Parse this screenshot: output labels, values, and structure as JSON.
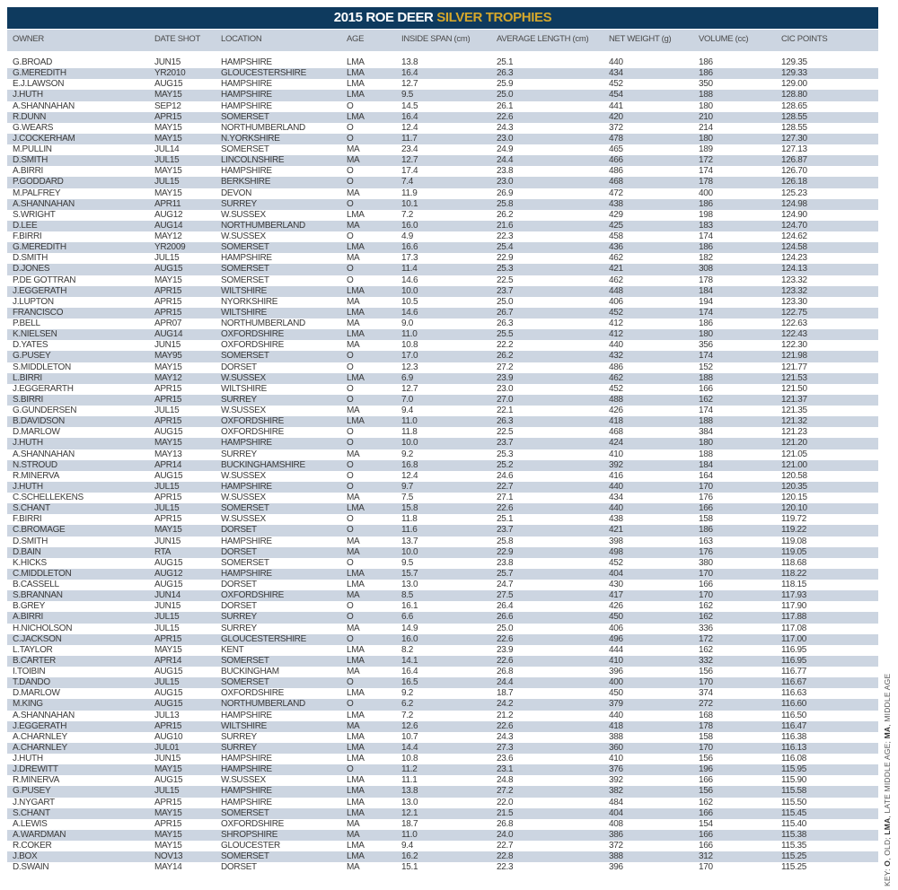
{
  "title": {
    "main": "2015 ROE DEER",
    "accent": "SILVER TROPHIES"
  },
  "colors": {
    "title_bg": "#0e3a5e",
    "accent": "#d4a72c",
    "stripe": "#ccd5e1"
  },
  "columns": [
    "OWNER",
    "DATE SHOT",
    "LOCATION",
    "AGE",
    "INSIDE SPAN (cm)",
    "AVERAGE LENGTH (cm)",
    "NET WEIGHT (g)",
    "VOLUME (cc)",
    "CIC POINTS"
  ],
  "rows": [
    [
      "G.BROAD",
      "JUN15",
      "HAMPSHIRE",
      "LMA",
      "13.8",
      "25.1",
      "440",
      "186",
      "129.35"
    ],
    [
      "G.MEREDITH",
      "YR2010",
      "GLOUCESTERSHIRE",
      "LMA",
      "16.4",
      "26.3",
      "434",
      "186",
      "129.33"
    ],
    [
      "E.J.LAWSON",
      "AUG15",
      "HAMPSHIRE",
      "LMA",
      "12.7",
      "25.9",
      "452",
      "350",
      "129.00"
    ],
    [
      "J.HUTH",
      "MAY15",
      "HAMPSHIRE",
      "LMA",
      "9.5",
      "25.0",
      "454",
      "188",
      "128.80"
    ],
    [
      "A.SHANNAHAN",
      "SEP12",
      "HAMPSHIRE",
      "O",
      "14.5",
      "26.1",
      "441",
      "180",
      "128.65"
    ],
    [
      "R.DUNN",
      "APR15",
      "SOMERSET",
      "LMA",
      "16.4",
      "22.6",
      "420",
      "210",
      "128.55"
    ],
    [
      "G.WEARS",
      "MAY15",
      "NORTHUMBERLAND",
      "O",
      "12.4",
      "24.3",
      "372",
      "214",
      "128.55"
    ],
    [
      "J.COCKERHAM",
      "MAY15",
      "N.YORKSHIRE",
      "O",
      "11.7",
      "23.0",
      "478",
      "180",
      "127.30"
    ],
    [
      "M.PULLIN",
      "JUL14",
      "SOMERSET",
      "MA",
      "23.4",
      "24.9",
      "465",
      "189",
      "127.13"
    ],
    [
      "D.SMITH",
      "JUL15",
      "LINCOLNSHIRE",
      "MA",
      "12.7",
      "24.4",
      "466",
      "172",
      "126.87"
    ],
    [
      "A.BIRRI",
      "MAY15",
      "HAMPSHIRE",
      "O",
      "17.4",
      "23.8",
      "486",
      "174",
      "126.70"
    ],
    [
      "P.GODDARD",
      "JUL15",
      "BERKSHIRE",
      "O",
      "7.4",
      "23.0",
      "468",
      "178",
      "126.18"
    ],
    [
      "M.PALFREY",
      "MAY15",
      "DEVON",
      "MA",
      "11.9",
      "26.9",
      "472",
      "400",
      "125.23"
    ],
    [
      "A.SHANNAHAN",
      "APR11",
      "SURREY",
      "O",
      "10.1",
      "25.8",
      "438",
      "186",
      "124.98"
    ],
    [
      "S.WRIGHT",
      "AUG12",
      "W.SUSSEX",
      "LMA",
      "7.2",
      "26.2",
      "429",
      "198",
      "124.90"
    ],
    [
      "D.LEE",
      "AUG14",
      "NORTHUMBERLAND",
      "MA",
      "16.0",
      "21.6",
      "425",
      "183",
      "124.70"
    ],
    [
      "F.BIRRI",
      "MAY12",
      "W.SUSSEX",
      "O",
      "4.9",
      "22.3",
      "458",
      "174",
      "124.62"
    ],
    [
      "G.MEREDITH",
      "YR2009",
      "SOMERSET",
      "LMA",
      "16.6",
      "25.4",
      "436",
      "186",
      "124.58"
    ],
    [
      "D.SMITH",
      "JUL15",
      "HAMPSHIRE",
      "MA",
      "17.3",
      "22.9",
      "462",
      "182",
      "124.23"
    ],
    [
      "D.JONES",
      "AUG15",
      "SOMERSET",
      "O",
      "11.4",
      "25.3",
      "421",
      "308",
      "124.13"
    ],
    [
      "P.DE GOTTRAN",
      "MAY15",
      "SOMERSET",
      "O",
      "14.6",
      "22.5",
      "462",
      "178",
      "123.32"
    ],
    [
      "J.EGGERATH",
      "APR15",
      "WILTSHIRE",
      "LMA",
      "10.0",
      "23.7",
      "448",
      "184",
      "123.32"
    ],
    [
      "J.LUPTON",
      "APR15",
      "NYORKSHIRE",
      "MA",
      "10.5",
      "25.0",
      "406",
      "194",
      "123.30"
    ],
    [
      "FRANCISCO",
      "APR15",
      "WILTSHIRE",
      "LMA",
      "14.6",
      "26.7",
      "452",
      "174",
      "122.75"
    ],
    [
      "P.BELL",
      "APR07",
      "NORTHUMBERLAND",
      "MA",
      "9.0",
      "26.3",
      "412",
      "186",
      "122.63"
    ],
    [
      "K.NIELSEN",
      "AUG14",
      "OXFORDSHIRE",
      "LMA",
      "11.0",
      "25.5",
      "412",
      "180",
      "122.43"
    ],
    [
      "D.YATES",
      "JUN15",
      "OXFORDSHIRE",
      "MA",
      "10.8",
      "22.2",
      "440",
      "356",
      "122.30"
    ],
    [
      "G.PUSEY",
      "MAY95",
      "SOMERSET",
      "O",
      "17.0",
      "26.2",
      "432",
      "174",
      "121.98"
    ],
    [
      "S.MIDDLETON",
      "MAY15",
      "DORSET",
      "O",
      "12.3",
      "27.2",
      "486",
      "152",
      "121.77"
    ],
    [
      "L.BIRRI",
      "MAY12",
      "W.SUSSEX",
      "LMA",
      "6.9",
      "23.9",
      "462",
      "188",
      "121.53"
    ],
    [
      "J.EGGERARTH",
      "APR15",
      "WILTSHIRE",
      "O",
      "12.7",
      "23.0",
      "452",
      "166",
      "121.50"
    ],
    [
      "S.BIRRI",
      "APR15",
      "SURREY",
      "O",
      "7.0",
      "27.0",
      "488",
      "162",
      "121.37"
    ],
    [
      "G.GUNDERSEN",
      "JUL15",
      "W.SUSSEX",
      "MA",
      "9.4",
      "22.1",
      "426",
      "174",
      "121.35"
    ],
    [
      "B.DAVIDSON",
      "APR15",
      "OXFORDSHIRE",
      "LMA",
      "11.0",
      "26.3",
      "418",
      "188",
      "121.32"
    ],
    [
      "D.MARLOW",
      "AUG15",
      "OXFORDSHIRE",
      "O",
      "11.8",
      "22.5",
      "468",
      "384",
      "121.23"
    ],
    [
      "J.HUTH",
      "MAY15",
      "HAMPSHIRE",
      "O",
      "10.0",
      "23.7",
      "424",
      "180",
      "121.20"
    ],
    [
      "A.SHANNAHAN",
      "MAY13",
      "SURREY",
      "MA",
      "9.2",
      "25.3",
      "410",
      "188",
      "121.05"
    ],
    [
      "N.STROUD",
      "APR14",
      "BUCKINGHAMSHIRE",
      "O",
      "16.8",
      "25.2",
      "392",
      "184",
      "121.00"
    ],
    [
      "R.MINERVA",
      "AUG15",
      "W.SUSSEX",
      "O",
      "12.4",
      "24.6",
      "416",
      "164",
      "120.58"
    ],
    [
      "J.HUTH",
      "JUL15",
      "HAMPSHIRE",
      "O",
      "9.7",
      "22.7",
      "440",
      "170",
      "120.35"
    ],
    [
      "C.SCHELLEKENS",
      "APR15",
      "W.SUSSEX",
      "MA",
      "7.5",
      "27.1",
      "434",
      "176",
      "120.15"
    ],
    [
      "S.CHANT",
      "JUL15",
      "SOMERSET",
      "LMA",
      "15.8",
      "22.6",
      "440",
      "166",
      "120.10"
    ],
    [
      "F.BIRRI",
      "APR15",
      "W.SUSSEX",
      "O",
      "11.8",
      "25.1",
      "438",
      "158",
      "119.72"
    ],
    [
      "C.BROMAGE",
      "MAY15",
      "DORSET",
      "O",
      "11.6",
      "23.7",
      "421",
      "186",
      "119.22"
    ],
    [
      "D.SMITH",
      "JUN15",
      "HAMPSHIRE",
      "MA",
      "13.7",
      "25.8",
      "398",
      "163",
      "119.08"
    ],
    [
      "D.BAIN",
      "RTA",
      "DORSET",
      "MA",
      "10.0",
      "22.9",
      "498",
      "176",
      "119.05"
    ],
    [
      "K.HICKS",
      "AUG15",
      "SOMERSET",
      "O",
      "9.5",
      "23.8",
      "452",
      "380",
      "118.68"
    ],
    [
      "C.MIDDLETON",
      "AUG12",
      "HAMPSHIRE",
      "LMA",
      "15.7",
      "25.7",
      "404",
      "170",
      "118.22"
    ],
    [
      "B.CASSELL",
      "AUG15",
      "DORSET",
      "LMA",
      "13.0",
      "24.7",
      "430",
      "166",
      "118.15"
    ],
    [
      "S.BRANNAN",
      "JUN14",
      "OXFORDSHIRE",
      "MA",
      "8.5",
      "27.5",
      "417",
      "170",
      "117.93"
    ],
    [
      "B.GREY",
      "JUN15",
      "DORSET",
      "O",
      "16.1",
      "26.4",
      "426",
      "162",
      "117.90"
    ],
    [
      "A.BIRRI",
      "JUL15",
      "SURREY",
      "O",
      "6.6",
      "26.6",
      "450",
      "162",
      "117.88"
    ],
    [
      "H.NICHOLSON",
      "JUL15",
      "SURREY",
      "MA",
      "14.9",
      "25.0",
      "406",
      "336",
      "117.08"
    ],
    [
      "C.JACKSON",
      "APR15",
      "GLOUCESTERSHIRE",
      "O",
      "16.0",
      "22.6",
      "496",
      "172",
      "117.00"
    ],
    [
      "L.TAYLOR",
      "MAY15",
      "KENT",
      "LMA",
      "8.2",
      "23.9",
      "444",
      "162",
      "116.95"
    ],
    [
      "B.CARTER",
      "APR14",
      "SOMERSET",
      "LMA",
      "14.1",
      "22.6",
      "410",
      "332",
      "116.95"
    ],
    [
      "I.TOIBIN",
      "AUG15",
      "BUCKINGHAM",
      "MA",
      "16.4",
      "26.8",
      "396",
      "156",
      "116.77"
    ],
    [
      "T.DANDO",
      "JUL15",
      "SOMERSET",
      "O",
      "16.5",
      "24.4",
      "400",
      "170",
      "116.67"
    ],
    [
      "D.MARLOW",
      "AUG15",
      "OXFORDSHIRE",
      "LMA",
      "9.2",
      "18.7",
      "450",
      "374",
      "116.63"
    ],
    [
      "M.KING",
      "AUG15",
      "NORTHUMBERLAND",
      "O",
      "6.2",
      "24.2",
      "379",
      "272",
      "116.60"
    ],
    [
      "A.SHANNAHAN",
      "JUL13",
      "HAMPSHIRE",
      "LMA",
      "7.2",
      "21.2",
      "440",
      "168",
      "116.50"
    ],
    [
      "J.EGGERATH",
      "APR15",
      "WILTSHIRE",
      "MA",
      "12.6",
      "22.6",
      "418",
      "178",
      "116.47"
    ],
    [
      "A.CHARNLEY",
      "AUG10",
      "SURREY",
      "LMA",
      "10.7",
      "24.3",
      "388",
      "158",
      "116.38"
    ],
    [
      "A.CHARNLEY",
      "JUL01",
      "SURREY",
      "LMA",
      "14.4",
      "27.3",
      "360",
      "170",
      "116.13"
    ],
    [
      "J.HUTH",
      "JUN15",
      "HAMPSHIRE",
      "LMA",
      "10.8",
      "23.6",
      "410",
      "156",
      "116.08"
    ],
    [
      "J.DREWITT",
      "MAY15",
      "HAMPSHIRE",
      "O",
      "11.2",
      "23.1",
      "376",
      "196",
      "115.95"
    ],
    [
      "R.MINERVA",
      "AUG15",
      "W.SUSSEX",
      "LMA",
      "11.1",
      "24.8",
      "392",
      "166",
      "115.90"
    ],
    [
      "G.PUSEY",
      "JUL15",
      "HAMPSHIRE",
      "LMA",
      "13.8",
      "27.2",
      "382",
      "156",
      "115.58"
    ],
    [
      "J.NYGART",
      "APR15",
      "HAMPSHIRE",
      "LMA",
      "13.0",
      "22.0",
      "484",
      "162",
      "115.50"
    ],
    [
      "S.CHANT",
      "MAY15",
      "SOMERSET",
      "LMA",
      "12.1",
      "21.5",
      "404",
      "166",
      "115.45"
    ],
    [
      "A.LEWIS",
      "APR15",
      "OXFORDSHIRE",
      "MA",
      "18.7",
      "26.8",
      "408",
      "154",
      "115.40"
    ],
    [
      "A.WARDMAN",
      "MAY15",
      "SHROPSHIRE",
      "MA",
      "11.0",
      "24.0",
      "386",
      "166",
      "115.38"
    ],
    [
      "R.COKER",
      "MAY15",
      "GLOUCESTER",
      "LMA",
      "9.4",
      "22.7",
      "372",
      "166",
      "115.35"
    ],
    [
      "J.BOX",
      "NOV13",
      "SOMERSET",
      "LMA",
      "16.2",
      "22.8",
      "388",
      "312",
      "115.25"
    ],
    [
      "D.SWAIN",
      "MAY14",
      "DORSET",
      "MA",
      "15.1",
      "22.3",
      "396",
      "170",
      "115.25"
    ]
  ],
  "key": {
    "label": "KEY:",
    "items": [
      {
        "code": "O",
        "meaning": "OLD;"
      },
      {
        "code": "LMA",
        "meaning": "LATE MIDDLE AGE;"
      },
      {
        "code": "MA",
        "meaning": "MIDDLE AGE"
      }
    ]
  }
}
